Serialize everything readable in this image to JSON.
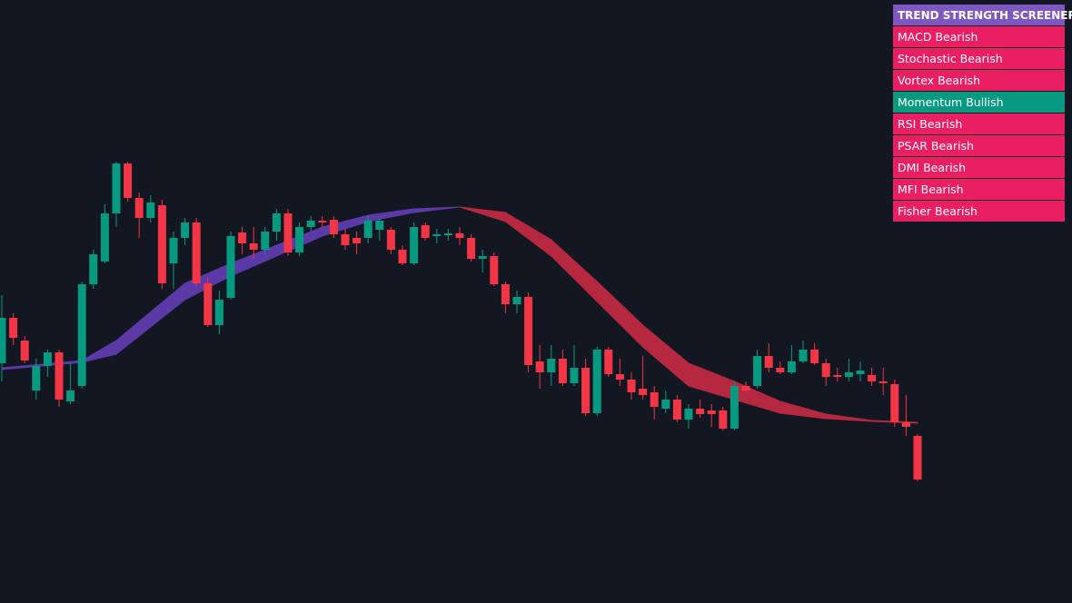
{
  "chart_data": {
    "type": "candlestick",
    "ylim": [
      0,
      664
    ],
    "up_color": "#089981",
    "down_color": "#f23645",
    "open": [
      264,
      314,
      289,
      234,
      261,
      276,
      222,
      239,
      351,
      376,
      429,
      484,
      446,
      424,
      438,
      374,
      402,
      419,
      352,
      306,
      336,
      408,
      396,
      389,
      409,
      429,
      386,
      414,
      421,
      422,
      406,
      402,
      402,
      411,
      411,
      389,
      374,
      416,
      404,
      405,
      407,
      402,
      379,
      382,
      351,
      329,
      337,
      266,
      254,
      269,
      242,
      259,
      209,
      279,
      252,
      246,
      236,
      232,
      214,
      224,
      202,
      214,
      212,
      212,
      192,
      239,
      239,
      272,
      259,
      254,
      266,
      279,
      264,
      251,
      249,
      252,
      251,
      244,
      241,
      199,
      184
    ],
    "high": [
      339,
      319,
      294,
      269,
      279,
      279,
      264,
      354,
      389,
      439,
      486,
      486,
      452,
      449,
      444,
      409,
      424,
      424,
      359,
      344,
      409,
      414,
      414,
      414,
      434,
      434,
      419,
      426,
      426,
      426,
      412,
      409,
      426,
      424,
      414,
      394,
      419,
      419,
      412,
      412,
      414,
      406,
      389,
      386,
      354,
      344,
      342,
      284,
      284,
      279,
      284,
      269,
      282,
      282,
      269,
      254,
      272,
      239,
      234,
      229,
      219,
      224,
      219,
      216,
      244,
      244,
      279,
      286,
      266,
      284,
      289,
      286,
      269,
      259,
      269,
      266,
      259,
      259,
      246,
      229,
      186
    ],
    "low": [
      244,
      284,
      264,
      224,
      249,
      216,
      219,
      236,
      346,
      374,
      414,
      442,
      402,
      419,
      346,
      346,
      394,
      349,
      304,
      296,
      334,
      384,
      379,
      384,
      399,
      382,
      382,
      409,
      414,
      402,
      389,
      384,
      396,
      399,
      384,
      372,
      372,
      399,
      396,
      399,
      394,
      376,
      364,
      349,
      319,
      319,
      254,
      236,
      239,
      239,
      239,
      206,
      206,
      249,
      239,
      224,
      224,
      202,
      209,
      199,
      192,
      204,
      194,
      190,
      190,
      232,
      236,
      254,
      252,
      252,
      264,
      262,
      239,
      244,
      244,
      244,
      239,
      229,
      194,
      184,
      134
    ],
    "close": [
      314,
      292,
      267,
      261,
      276,
      224,
      234,
      351,
      384,
      429,
      484,
      446,
      424,
      441,
      352,
      402,
      419,
      352,
      306,
      334,
      404,
      396,
      389,
      409,
      429,
      386,
      414,
      421,
      419,
      406,
      394,
      396,
      421,
      421,
      389,
      374,
      414,
      402,
      406,
      407,
      402,
      379,
      382,
      351,
      329,
      337,
      262,
      254,
      269,
      242,
      259,
      209,
      279,
      252,
      246,
      232,
      229,
      216,
      224,
      202,
      214,
      208,
      208,
      192,
      239,
      234,
      272,
      259,
      254,
      266,
      279,
      264,
      249,
      249,
      254,
      256,
      244,
      242,
      199,
      194,
      136
    ],
    "ribbon": {
      "rising_color": "#5b3aa8",
      "falling_color": "#b5283f",
      "x": [
        0,
        7,
        10,
        16,
        20,
        24,
        28,
        32,
        36,
        40,
        44,
        48,
        52,
        56,
        60,
        64,
        68,
        72,
        76,
        80
      ],
      "fast": [
        259,
        267,
        289,
        352,
        374,
        394,
        414,
        427,
        434,
        436,
        420,
        382,
        332,
        282,
        239,
        224,
        209,
        203,
        200,
        198
      ],
      "slow": [
        257,
        265,
        274,
        334,
        360,
        382,
        404,
        420,
        430,
        436,
        430,
        400,
        354,
        306,
        264,
        244,
        222,
        208,
        201,
        199
      ]
    }
  },
  "screener": {
    "title": "TREND STRENGTH SCREENER",
    "title_color": "#7e57c2",
    "rows": [
      {
        "label": "MACD Bearish",
        "color": "#e91e63"
      },
      {
        "label": "Stochastic Bearish",
        "color": "#e91e63"
      },
      {
        "label": "Vortex Bearish",
        "color": "#e91e63"
      },
      {
        "label": "Momentum Bullish",
        "color": "#089981"
      },
      {
        "label": "RSI Bearish",
        "color": "#e91e63"
      },
      {
        "label": "PSAR Bearish",
        "color": "#e91e63"
      },
      {
        "label": "DMI Bearish",
        "color": "#e91e63"
      },
      {
        "label": "MFI Bearish",
        "color": "#e91e63"
      },
      {
        "label": "Fisher Bearish",
        "color": "#e91e63"
      }
    ]
  }
}
